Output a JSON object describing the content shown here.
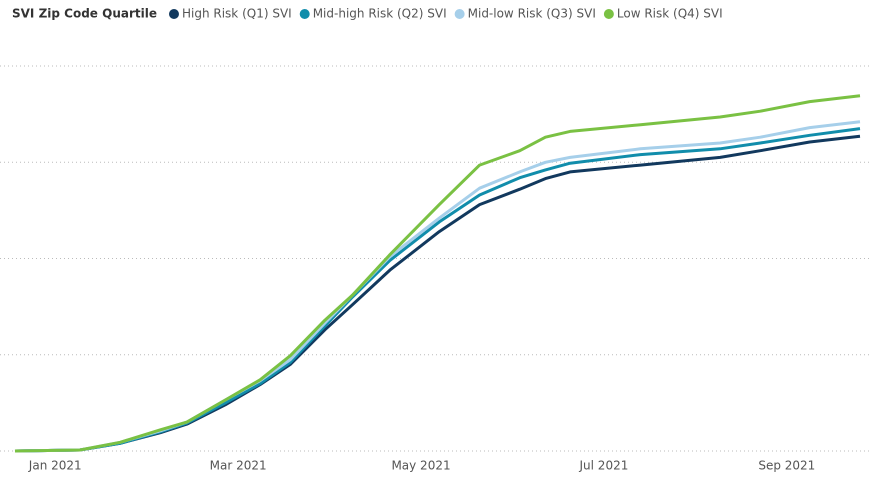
{
  "chart_data": {
    "type": "line",
    "legend_title": "SVI Zip Code Quartile",
    "x": [
      0.56,
      1.27,
      1.71,
      2.15,
      2.44,
      2.86,
      3.24,
      3.57,
      3.95,
      4.25,
      4.66,
      5.2,
      5.64,
      6.08,
      6.36,
      6.63,
      7.4,
      8.27,
      8.71,
      9.25,
      9.8
    ],
    "series": [
      {
        "name": "High Risk (Q1) SVI",
        "color": "#12395e",
        "values": [
          0,
          0.01,
          0.08,
          0.19,
          0.28,
          0.48,
          0.69,
          0.9,
          1.26,
          1.52,
          1.88,
          2.28,
          2.56,
          2.72,
          2.83,
          2.9,
          2.97,
          3.05,
          3.12,
          3.21,
          3.27
        ]
      },
      {
        "name": "Mid-high Risk (Q2) SVI",
        "color": "#118dab",
        "values": [
          0,
          0.01,
          0.08,
          0.2,
          0.29,
          0.5,
          0.7,
          0.92,
          1.3,
          1.6,
          1.98,
          2.38,
          2.66,
          2.84,
          2.92,
          2.99,
          3.08,
          3.14,
          3.2,
          3.28,
          3.35
        ]
      },
      {
        "name": "Mid-low Risk (Q3) SVI",
        "color": "#a6cfea",
        "values": [
          0,
          0.01,
          0.09,
          0.21,
          0.3,
          0.53,
          0.73,
          0.95,
          1.33,
          1.62,
          2.02,
          2.42,
          2.73,
          2.9,
          3.0,
          3.05,
          3.14,
          3.2,
          3.26,
          3.36,
          3.42
        ]
      },
      {
        "name": "Low Risk (Q4) SVI",
        "color": "#7ac143",
        "values": [
          0,
          0.01,
          0.09,
          0.22,
          0.3,
          0.53,
          0.74,
          0.99,
          1.36,
          1.62,
          2.04,
          2.56,
          2.97,
          3.12,
          3.26,
          3.32,
          3.39,
          3.47,
          3.53,
          3.63,
          3.69
        ]
      }
    ],
    "xlim": [
      0.56,
      9.8
    ],
    "xticks": [
      {
        "value": 1,
        "label": "Jan 2021"
      },
      {
        "value": 3,
        "label": "Mar 2021"
      },
      {
        "value": 5,
        "label": "May 2021"
      },
      {
        "value": 7,
        "label": "Jul 2021"
      },
      {
        "value": 9,
        "label": "Sep 2021"
      }
    ],
    "ylim": [
      0,
      4
    ],
    "yticks": [
      0,
      1,
      2,
      3,
      4
    ],
    "grid": true,
    "legend": "top-left"
  }
}
